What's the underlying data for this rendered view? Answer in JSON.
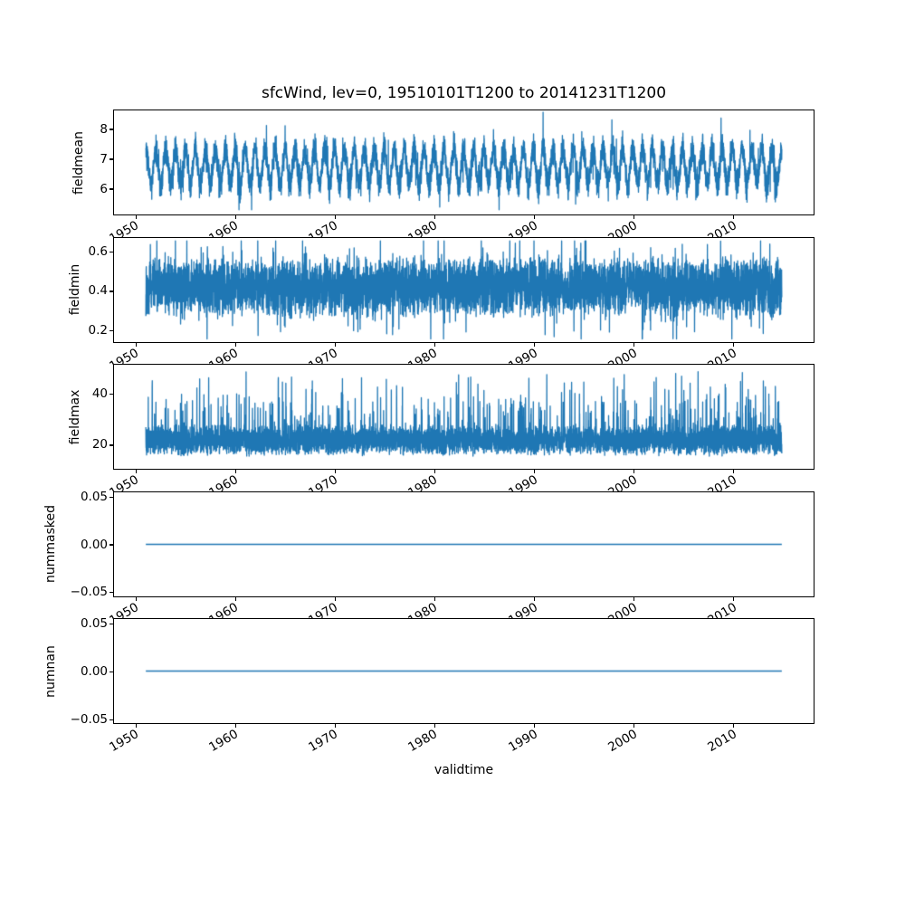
{
  "figure": {
    "title": "sfcWind, lev=0, 19510101T1200 to 20141231T1200",
    "xlabel": "validtime",
    "colors": {
      "line": "#1f77b4",
      "frame": "#000000",
      "text": "#000000",
      "background": "#ffffff"
    }
  },
  "chart_data": [
    {
      "type": "line",
      "ylabel": "fieldmean",
      "xlabel": "validtime",
      "xlim": [
        1947.8,
        2018.2
      ],
      "xticks": [
        1950,
        1960,
        1970,
        1980,
        1990,
        2000,
        2010
      ],
      "xtick_labels": [
        "1950",
        "1960",
        "1970",
        "1980",
        "1990",
        "2000",
        "2010"
      ],
      "ylim": [
        5.09,
        8.64
      ],
      "ytick_values": [
        6,
        7,
        8
      ],
      "ytick_labels": [
        "6",
        "7",
        "8"
      ],
      "grid": false,
      "legend": null,
      "series": {
        "name": "fieldmean",
        "kind": "seasonal-noise",
        "x_start": 1951.0,
        "x_end": 2015.0,
        "points": 6000,
        "seed": 101,
        "baseline": 6.72,
        "seasonal_amplitude": 0.62,
        "seasonal_jitter": 0.35,
        "noise_amplitude": 0.55,
        "spike_rate": 0.012,
        "spike_amplitude": 0.9,
        "approx_min": 5.25,
        "approx_max": 8.58
      }
    },
    {
      "type": "line",
      "ylabel": "fieldmin",
      "xlim": [
        1947.8,
        2018.2
      ],
      "xticks": [
        1950,
        1960,
        1970,
        1980,
        1990,
        2000,
        2010
      ],
      "xtick_labels": [
        "1950",
        "1960",
        "1970",
        "1980",
        "1990",
        "2000",
        "2010"
      ],
      "ylim": [
        0.134,
        0.675
      ],
      "ytick_values": [
        0.2,
        0.4,
        0.6
      ],
      "ytick_labels": [
        "0.2",
        "0.4",
        "0.6"
      ],
      "grid": false,
      "legend": null,
      "series": {
        "name": "fieldmin",
        "kind": "band-noise",
        "x_start": 1951.0,
        "x_end": 2015.0,
        "points": 6000,
        "seed": 202,
        "baseline": 0.42,
        "noise_amplitude": 0.16,
        "fine_noise": 0.03,
        "up_spike_rate": 0.02,
        "up_spike": 0.22,
        "down_spike_rate": 0.02,
        "down_spike": 0.23,
        "approx_min": 0.15,
        "approx_max": 0.66
      }
    },
    {
      "type": "line",
      "ylabel": "fieldmax",
      "xlim": [
        1947.8,
        2018.2
      ],
      "xticks": [
        1950,
        1960,
        1970,
        1980,
        1990,
        2000,
        2010
      ],
      "xtick_labels": [
        "1950",
        "1960",
        "1970",
        "1980",
        "1990",
        "2000",
        "2010"
      ],
      "ylim": [
        10.1,
        51.4
      ],
      "ytick_values": [
        20,
        40
      ],
      "ytick_labels": [
        "20",
        "40"
      ],
      "grid": false,
      "legend": null,
      "series": {
        "name": "fieldmax",
        "kind": "spiky",
        "x_start": 1951.0,
        "x_end": 2015.0,
        "points": 6000,
        "seed": 303,
        "base_low": 15.0,
        "base_range": 9.0,
        "base_extra": 4.0,
        "mid_spike_rate": 0.05,
        "mid_spike": 16.0,
        "big_spike_rate": 0.012,
        "big_spike_low": 36.0,
        "big_spike_range": 13.0,
        "approx_min": 13.5,
        "approx_max": 50.5
      }
    },
    {
      "type": "line",
      "ylabel": "nummasked",
      "xlim": [
        1947.8,
        2018.2
      ],
      "xticks": [
        1950,
        1960,
        1970,
        1980,
        1990,
        2000,
        2010
      ],
      "xtick_labels": [
        "1950",
        "1960",
        "1970",
        "1980",
        "1990",
        "2000",
        "2010"
      ],
      "ylim": [
        -0.0555,
        0.0555
      ],
      "ytick_values": [
        0.05,
        0.0,
        -0.05
      ],
      "ytick_labels": [
        "0.05",
        "0.00",
        "−0.05"
      ],
      "grid": false,
      "legend": null,
      "series": {
        "name": "nummasked",
        "kind": "constant",
        "x_start": 1951.0,
        "x_end": 2015.0,
        "value": 0.0
      }
    },
    {
      "type": "line",
      "ylabel": "numnan",
      "xlim": [
        1947.8,
        2018.2
      ],
      "xticks": [
        1950,
        1960,
        1970,
        1980,
        1990,
        2000,
        2010
      ],
      "xtick_labels": [
        "1950",
        "1960",
        "1970",
        "1980",
        "1990",
        "2000",
        "2010"
      ],
      "ylim": [
        -0.0555,
        0.0555
      ],
      "ytick_values": [
        0.05,
        0.0,
        -0.05
      ],
      "ytick_labels": [
        "0.05",
        "0.00",
        "−0.05"
      ],
      "grid": false,
      "legend": null,
      "series": {
        "name": "numnan",
        "kind": "constant",
        "x_start": 1951.0,
        "x_end": 2015.0,
        "value": 0.0
      }
    }
  ]
}
